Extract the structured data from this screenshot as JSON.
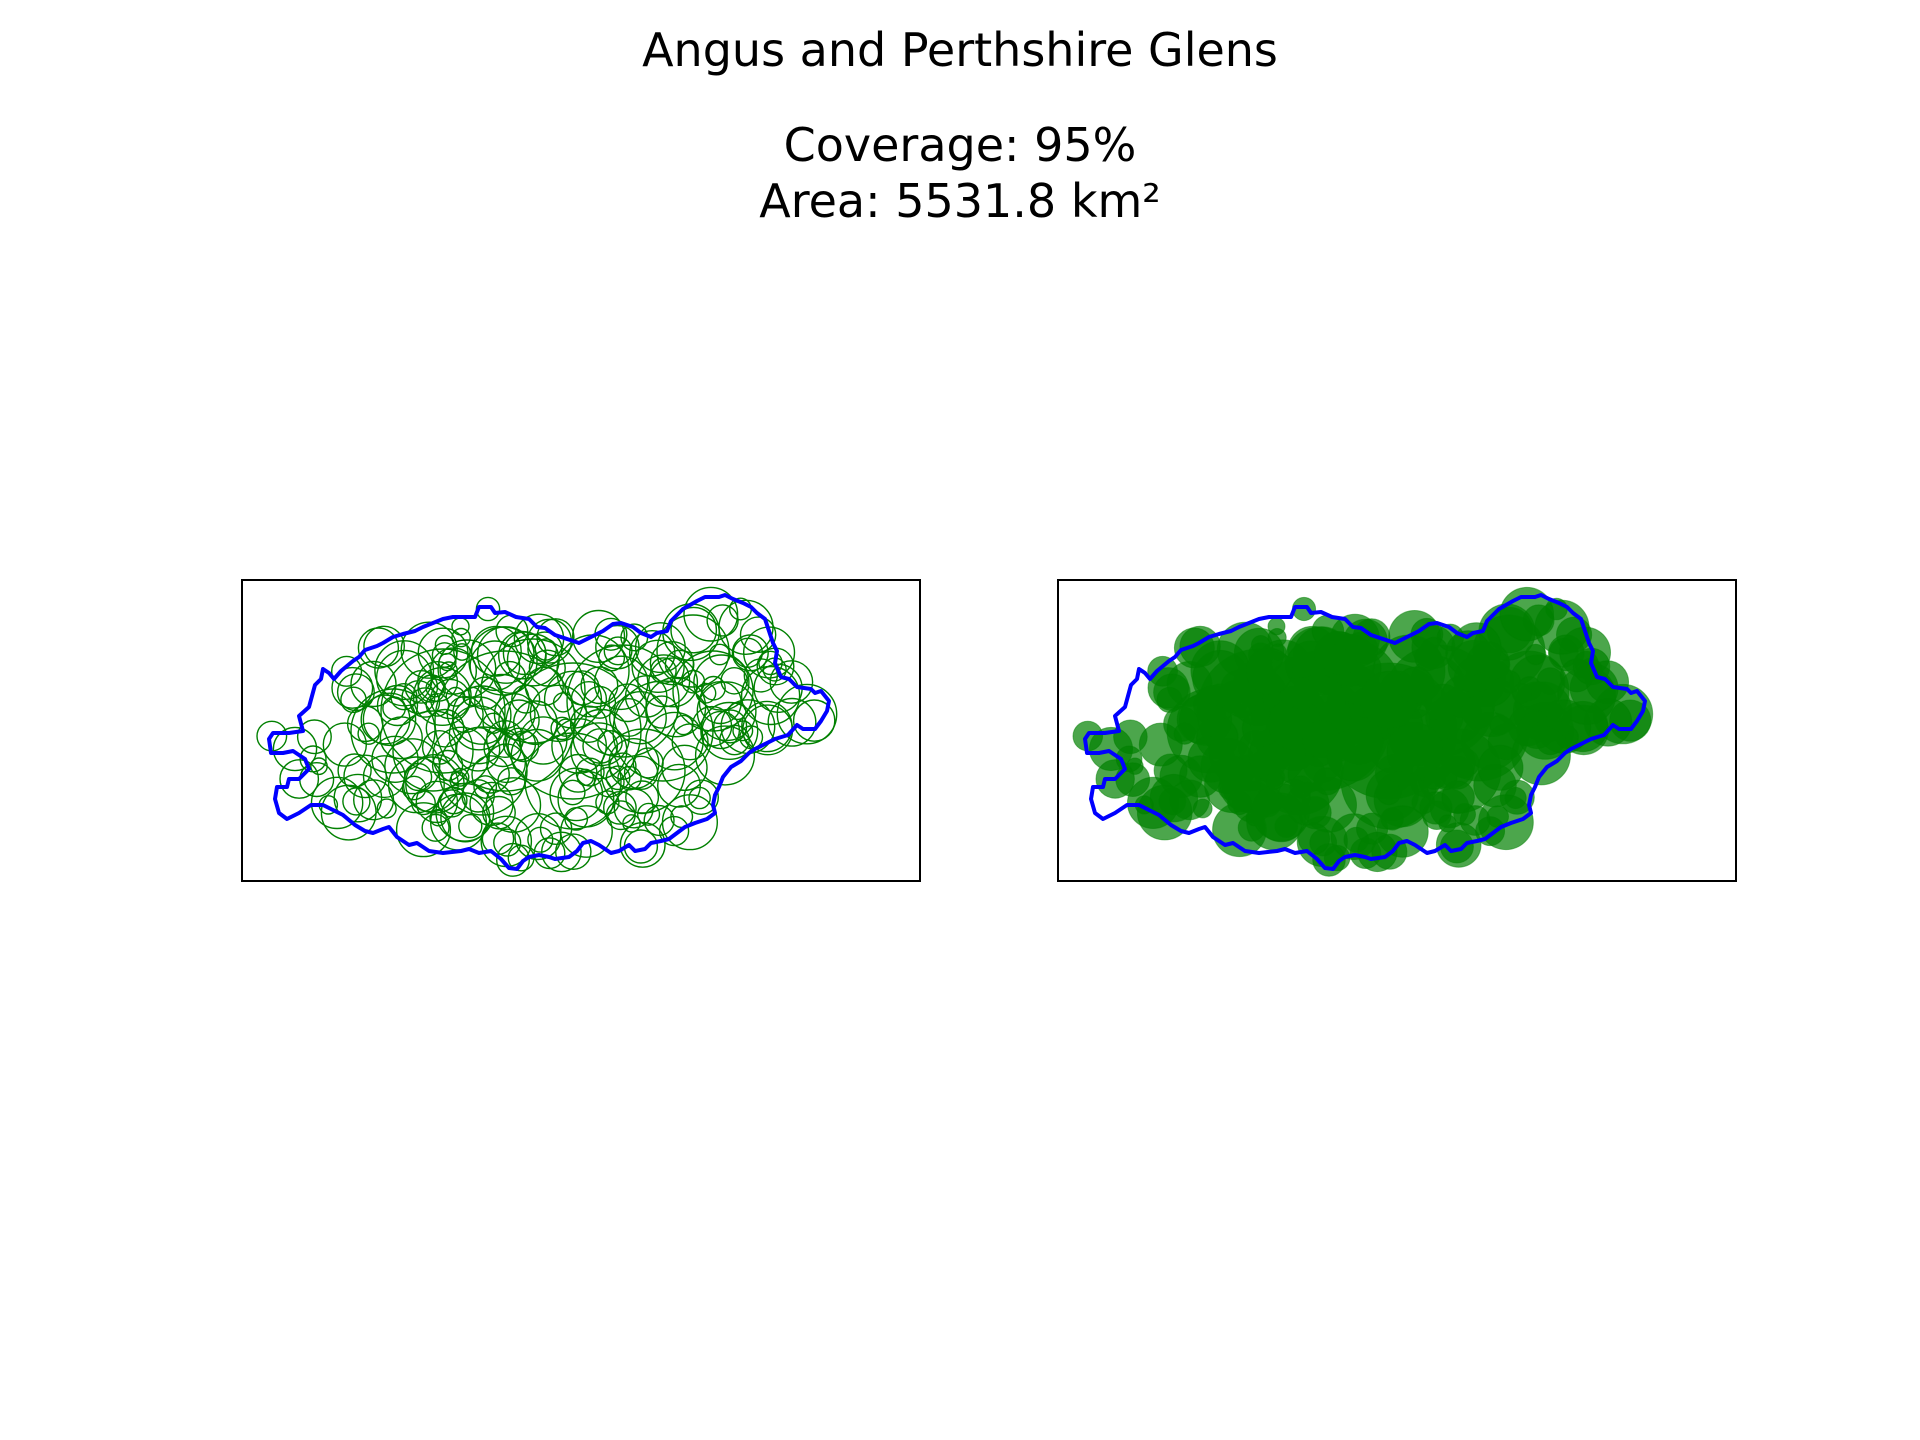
{
  "figure": {
    "title": "Angus and Perthshire Glens",
    "coverage_text": "Coverage: 95%",
    "area_text": "Area: 5531.8 km²"
  },
  "panels": [
    {
      "style": "outline",
      "circle_color": "#008000",
      "boundary_color": "#0000ff"
    },
    {
      "style": "filled",
      "circle_color": "#008000",
      "boundary_color": "#0000ff",
      "fill_alpha": 0.7
    }
  ],
  "colors": {
    "boundary": "#0000ff",
    "circles": "#008000",
    "frame": "#000000",
    "background": "#ffffff"
  }
}
